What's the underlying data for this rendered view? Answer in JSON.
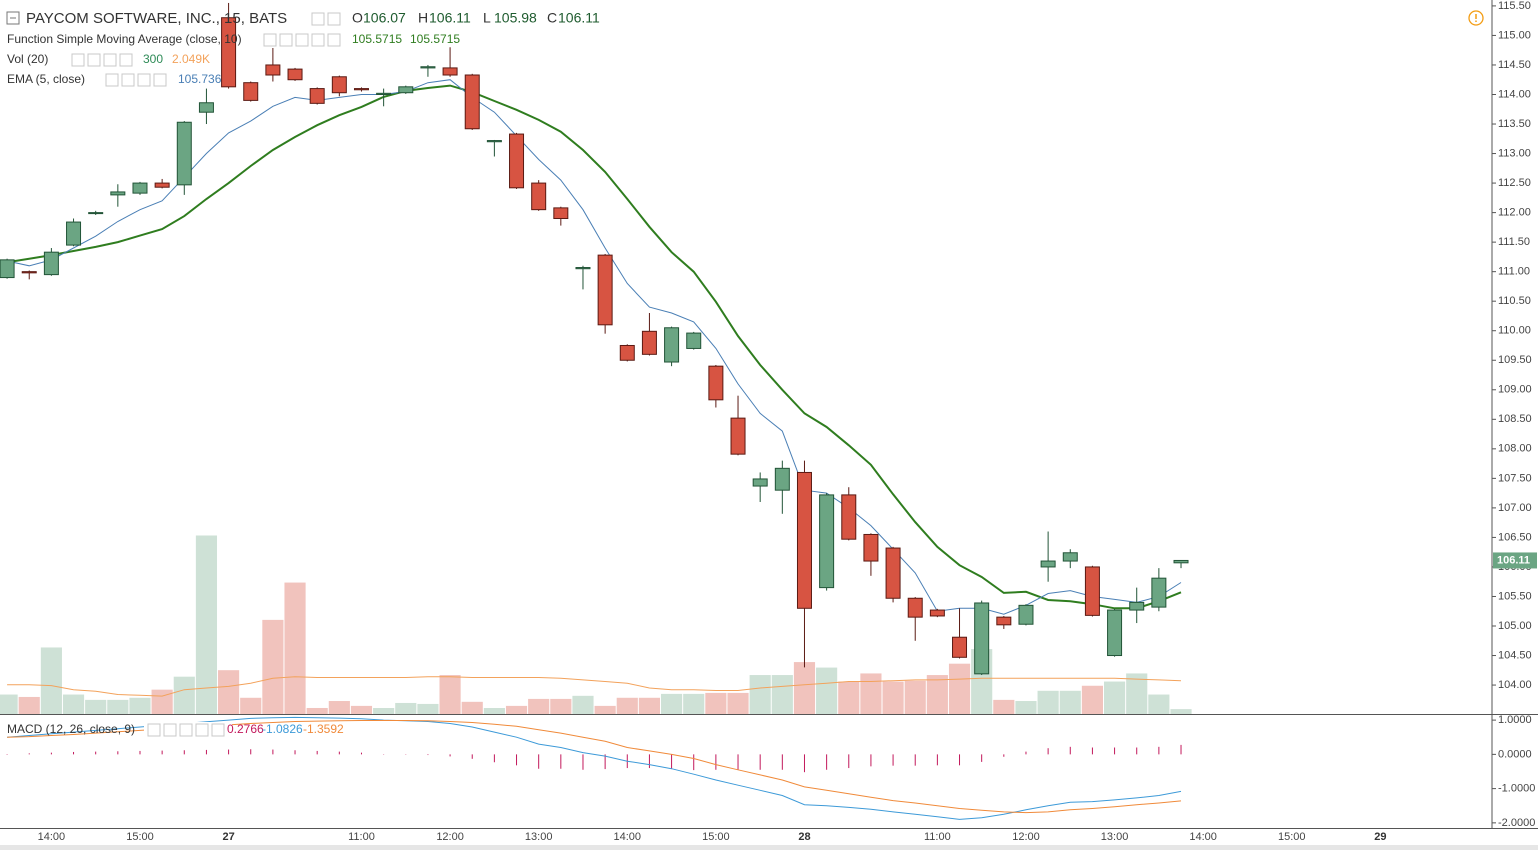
{
  "chart_data": {
    "type": "candlestick",
    "title": "PAYCOM SOFTWARE, INC., 15, BATS",
    "header": [
      {
        "key": "O",
        "value": 106.07
      },
      {
        "key": "H",
        "value": 106.11
      },
      {
        "key": "L",
        "value": 105.98
      },
      {
        "key": "C",
        "value": 106.11
      }
    ],
    "up_color": "#6ba583",
    "down_color": "#d75442",
    "open": [
      110.9,
      111.0,
      110.95,
      111.45,
      111.99,
      112.3,
      112.33,
      112.5,
      112.47,
      113.7,
      115.3,
      114.2,
      114.5,
      114.43,
      114.1,
      114.3,
      114.1,
      114.0,
      114.03,
      114.45,
      114.45,
      114.33,
      113.2,
      113.33,
      112.5,
      112.08,
      111.05,
      111.28,
      109.75,
      109.99,
      109.47,
      109.7,
      109.4,
      108.52,
      107.37,
      107.3,
      107.6,
      105.65,
      107.22,
      106.55,
      106.32,
      105.47,
      105.27,
      104.81,
      104.19,
      105.15,
      105.03,
      106.0,
      106.1,
      106.0,
      104.5,
      105.27,
      105.32,
      106.07
    ],
    "high": [
      111.22,
      111.02,
      111.4,
      111.9,
      112.03,
      112.48,
      112.52,
      112.57,
      113.55,
      114.1,
      115.55,
      114.22,
      114.85,
      114.45,
      114.12,
      114.32,
      114.12,
      114.1,
      114.15,
      114.5,
      114.8,
      114.35,
      113.23,
      113.35,
      112.55,
      112.1,
      111.1,
      111.3,
      109.77,
      110.3,
      110.07,
      109.98,
      109.42,
      108.9,
      107.6,
      107.8,
      107.8,
      107.25,
      107.35,
      106.57,
      106.34,
      105.49,
      105.29,
      105.3,
      105.43,
      105.17,
      105.37,
      106.6,
      106.3,
      106.02,
      105.29,
      105.65,
      105.98,
      106.11
    ],
    "low": [
      110.88,
      110.87,
      110.93,
      111.43,
      111.96,
      112.1,
      112.3,
      112.41,
      112.3,
      113.5,
      114.1,
      113.88,
      114.22,
      114.23,
      113.83,
      113.97,
      114.05,
      113.8,
      114.01,
      114.3,
      114.3,
      113.4,
      112.95,
      112.4,
      112.03,
      111.78,
      110.7,
      109.95,
      109.48,
      109.58,
      109.4,
      109.68,
      108.7,
      107.89,
      107.1,
      106.9,
      104.3,
      105.6,
      106.45,
      105.85,
      105.4,
      104.75,
      105.15,
      104.45,
      104.17,
      104.95,
      105.01,
      105.75,
      105.98,
      105.16,
      104.48,
      105.05,
      105.25,
      105.98
    ],
    "close": [
      111.2,
      110.98,
      111.33,
      111.84,
      112.0,
      112.35,
      112.5,
      112.43,
      113.53,
      113.86,
      114.13,
      113.9,
      114.33,
      114.25,
      113.85,
      114.03,
      114.08,
      114.02,
      114.13,
      114.47,
      114.33,
      113.42,
      113.22,
      112.42,
      112.05,
      111.9,
      111.07,
      110.1,
      109.5,
      109.6,
      110.05,
      109.96,
      108.83,
      107.91,
      107.49,
      107.67,
      105.3,
      107.22,
      106.47,
      106.1,
      105.47,
      105.15,
      105.17,
      104.47,
      105.39,
      105.02,
      105.35,
      106.1,
      106.24,
      105.18,
      105.27,
      105.4,
      105.81,
      106.11
    ],
    "overlays": [
      {
        "name": "Function Simple Moving Average (close, 10)",
        "color": "#2f7d1f",
        "width": 2,
        "legend_values": [
          105.5715,
          105.5715
        ],
        "values": [
          111.16,
          111.22,
          111.28,
          111.35,
          111.42,
          111.5,
          111.61,
          111.72,
          111.94,
          112.23,
          112.5,
          112.79,
          113.06,
          113.28,
          113.48,
          113.65,
          113.79,
          113.96,
          114.06,
          114.11,
          114.15,
          114.04,
          113.89,
          113.74,
          113.57,
          113.37,
          113.06,
          112.69,
          112.23,
          111.76,
          111.33,
          111.0,
          110.49,
          109.91,
          109.42,
          109.0,
          108.6,
          108.37,
          108.06,
          107.73,
          107.23,
          106.76,
          106.34,
          106.03,
          105.83,
          105.56,
          105.58,
          105.44,
          105.42,
          105.37,
          105.3,
          105.3,
          105.42,
          105.5715
        ]
      },
      {
        "name": "EMA (5, close)",
        "color": "#4a7fb5",
        "width": 1,
        "legend_values": [
          105.736
        ],
        "values": [
          111.18,
          111.1,
          111.2,
          111.4,
          111.6,
          111.85,
          112.05,
          112.2,
          112.6,
          113.0,
          113.35,
          113.55,
          113.8,
          113.95,
          113.9,
          113.95,
          114.0,
          114.0,
          114.05,
          114.2,
          114.25,
          113.95,
          113.7,
          113.3,
          112.9,
          112.55,
          112.05,
          111.4,
          110.8,
          110.4,
          110.3,
          110.15,
          109.7,
          109.1,
          108.6,
          108.3,
          107.3,
          107.25,
          107.0,
          106.7,
          106.3,
          105.9,
          105.25,
          105.3,
          105.3,
          105.2,
          105.35,
          105.55,
          105.6,
          105.5,
          105.45,
          105.4,
          105.5,
          105.736
        ]
      }
    ],
    "volume": {
      "name": "Vol (20)",
      "ylim": [
        0,
        44
      ],
      "ma_color": "#f3a25b",
      "legend_values": [
        300,
        {
          "value": 2.049,
          "label": "2.049K"
        }
      ],
      "values": [
        1.2,
        1.05,
        4.1,
        1.2,
        0.87,
        0.87,
        1.0,
        1.5,
        2.3,
        11.0,
        2.7,
        1.0,
        5.8,
        8.1,
        0.37,
        0.8,
        0.5,
        0.37,
        0.68,
        0.62,
        2.4,
        0.75,
        0.37,
        0.5,
        0.93,
        0.93,
        1.12,
        0.5,
        1.0,
        1.0,
        1.24,
        1.24,
        1.3,
        1.3,
        2.4,
        2.4,
        3.2,
        2.86,
        2.0,
        2.5,
        2.0,
        2.05,
        2.4,
        3.1,
        4.0,
        0.87,
        0.8,
        1.43,
        1.43,
        1.74,
        2.0,
        2.5,
        1.2,
        0.3
      ],
      "ma_values": [
        1.8,
        1.8,
        1.75,
        1.5,
        1.4,
        1.2,
        1.15,
        1.1,
        1.5,
        1.6,
        1.7,
        1.9,
        2.2,
        2.3,
        2.25,
        2.25,
        2.25,
        2.25,
        2.25,
        2.3,
        2.3,
        2.25,
        2.25,
        2.25,
        2.25,
        2.2,
        2.1,
        2.0,
        1.9,
        1.6,
        1.5,
        1.5,
        1.45,
        1.45,
        1.6,
        1.7,
        1.8,
        1.9,
        2.0,
        2.0,
        2.05,
        2.1,
        2.1,
        2.15,
        2.2,
        2.2,
        2.2,
        2.2,
        2.2,
        2.2,
        2.2,
        2.15,
        2.1,
        2.049
      ]
    },
    "macd": {
      "name": "MACD (12, 26, close, 9)",
      "ylim": [
        -2.15,
        1.12
      ],
      "hist_color": "#c2185b",
      "macd_color": "#3d9ad8",
      "signal_color": "#f08a3a",
      "legend_values": [
        0.2766,
        -1.0826,
        -1.3592
      ],
      "yticks": [
        {
          "value": 1,
          "label": "1.0000"
        },
        {
          "value": 0,
          "label": "0.0000"
        },
        {
          "value": -1,
          "label": "-1.0000"
        },
        {
          "value": -2,
          "label": "-2.0000"
        }
      ],
      "histogram": [
        0,
        0.03,
        0.05,
        0.07,
        0.08,
        0.09,
        0.1,
        0.11,
        0.12,
        0.13,
        0.14,
        0.15,
        0.14,
        0.12,
        0.1,
        0.08,
        0.05,
        0.01,
        -0.01,
        -0.02,
        -0.06,
        -0.13,
        -0.23,
        -0.32,
        -0.42,
        -0.42,
        -0.45,
        -0.43,
        -0.4,
        -0.4,
        -0.42,
        -0.46,
        -0.45,
        -0.45,
        -0.45,
        -0.45,
        -0.52,
        -0.45,
        -0.4,
        -0.35,
        -0.33,
        -0.33,
        -0.32,
        -0.32,
        -0.22,
        -0.07,
        0.08,
        0.18,
        0.22,
        0.2,
        0.2,
        0.2,
        0.22,
        0.2766
      ],
      "macd": [
        0.5,
        0.55,
        0.6,
        0.65,
        0.7,
        0.75,
        0.8,
        0.85,
        0.9,
        0.95,
        1.0,
        1.05,
        1.07,
        1.08,
        1.07,
        1.06,
        1.04,
        1.0,
        0.98,
        0.96,
        0.9,
        0.8,
        0.65,
        0.5,
        0.3,
        0.2,
        0.05,
        -0.05,
        -0.2,
        -0.3,
        -0.42,
        -0.58,
        -0.75,
        -0.9,
        -1.05,
        -1.2,
        -1.47,
        -1.5,
        -1.55,
        -1.6,
        -1.68,
        -1.75,
        -1.82,
        -1.9,
        -1.85,
        -1.75,
        -1.62,
        -1.5,
        -1.4,
        -1.38,
        -1.33,
        -1.27,
        -1.2,
        -1.0826
      ],
      "signal": [
        0.5,
        0.52,
        0.55,
        0.58,
        0.62,
        0.66,
        0.7,
        0.74,
        0.78,
        0.82,
        0.86,
        0.9,
        0.93,
        0.96,
        0.97,
        0.98,
        0.99,
        0.99,
        0.99,
        0.98,
        0.96,
        0.93,
        0.88,
        0.82,
        0.72,
        0.62,
        0.5,
        0.38,
        0.2,
        0.1,
        0.0,
        -0.12,
        -0.3,
        -0.45,
        -0.6,
        -0.75,
        -0.95,
        -1.05,
        -1.15,
        -1.25,
        -1.35,
        -1.42,
        -1.5,
        -1.58,
        -1.63,
        -1.68,
        -1.7,
        -1.68,
        -1.62,
        -1.58,
        -1.53,
        -1.47,
        -1.42,
        -1.3592
      ]
    },
    "last_price": 106.11,
    "xlim": [
      -0.32,
      67.04
    ],
    "xticks": [
      {
        "value": 2,
        "label": "14:00"
      },
      {
        "value": 6,
        "label": "15:00"
      },
      {
        "value": 10,
        "label": "27"
      },
      {
        "value": 16,
        "label": "11:00"
      },
      {
        "value": 20,
        "label": "12:00"
      },
      {
        "value": 24,
        "label": "13:00"
      },
      {
        "value": 28,
        "label": "14:00"
      },
      {
        "value": 32,
        "label": "15:00"
      },
      {
        "value": 36,
        "label": "28"
      },
      {
        "value": 42,
        "label": "11:00"
      },
      {
        "value": 46,
        "label": "12:00"
      },
      {
        "value": 50,
        "label": "13:00"
      },
      {
        "value": 54,
        "label": "14:00"
      },
      {
        "value": 58,
        "label": "15:00"
      },
      {
        "value": 62,
        "label": "29"
      }
    ],
    "ylim": [
      103.51,
      115.6
    ],
    "yticks": [
      {
        "value": 104,
        "label": "104.00"
      },
      {
        "value": 104.5,
        "label": "104.50"
      },
      {
        "value": 105,
        "label": "105.00"
      },
      {
        "value": 105.5,
        "label": "105.50"
      },
      {
        "value": 106,
        "label": "106.00"
      },
      {
        "value": 106.5,
        "label": "106.50"
      },
      {
        "value": 107,
        "label": "107.00"
      },
      {
        "value": 107.5,
        "label": "107.50"
      },
      {
        "value": 108,
        "label": "108.00"
      },
      {
        "value": 108.5,
        "label": "108.50"
      },
      {
        "value": 109,
        "label": "109.00"
      },
      {
        "value": 109.5,
        "label": "109.50"
      },
      {
        "value": 110,
        "label": "110.00"
      },
      {
        "value": 110.5,
        "label": "110.50"
      },
      {
        "value": 111,
        "label": "111.00"
      },
      {
        "value": 111.5,
        "label": "111.50"
      },
      {
        "value": 112,
        "label": "112.00"
      },
      {
        "value": 112.5,
        "label": "112.50"
      },
      {
        "value": 113,
        "label": "113.00"
      },
      {
        "value": 113.5,
        "label": "113.50"
      },
      {
        "value": 114,
        "label": "114.00"
      },
      {
        "value": 114.5,
        "label": "114.50"
      },
      {
        "value": 115,
        "label": "115.00"
      },
      {
        "value": 115.5,
        "label": "115.50"
      }
    ],
    "grid": true
  }
}
